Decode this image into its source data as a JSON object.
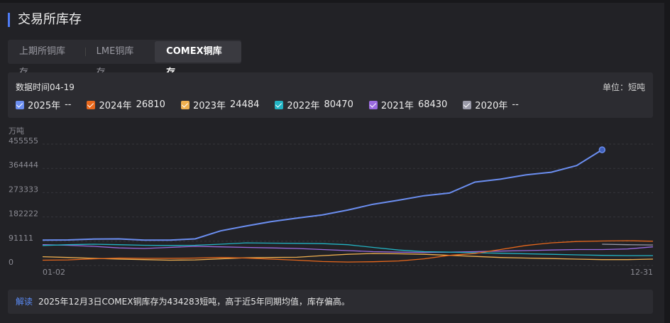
{
  "header": {
    "title": "交易所库存"
  },
  "tabs": [
    "上期所铜库存",
    "LME铜库存",
    "COMEX铜库存"
  ],
  "chart_data": {
    "type": "line",
    "data_time": "数据时间04-19",
    "unit": "单位：短吨",
    "y_unit": "万吨",
    "categories": [
      "01-02",
      null,
      null,
      null,
      null,
      null,
      null,
      null,
      null,
      null,
      null,
      null,
      null,
      null,
      null,
      null,
      null,
      null,
      null,
      null,
      null,
      null,
      null,
      null,
      "12-31"
    ],
    "ylim": [
      0,
      455555
    ],
    "yticks": [
      0,
      91111,
      182222,
      273333,
      364444,
      455555
    ],
    "grid": true,
    "legend_values": [
      "--",
      26810,
      24484,
      80470,
      68430,
      "--"
    ],
    "series": [
      {
        "name": "2025年",
        "color": "#6b8ef0",
        "values": [
          95000,
          96000,
          99000,
          100000,
          95000,
          95000,
          100000,
          130000,
          148000,
          165000,
          178000,
          190000,
          208000,
          230000,
          245000,
          262000,
          272000,
          313000,
          324000,
          340000,
          350000,
          375000,
          434283,
          null,
          null
        ]
      },
      {
        "name": "2024年",
        "color": "#e8681c",
        "values": [
          20000,
          21000,
          25000,
          28000,
          27000,
          27000,
          28000,
          30000,
          28000,
          24000,
          20000,
          15000,
          13000,
          14000,
          17000,
          25000,
          38000,
          45000,
          60000,
          75000,
          85000,
          90000,
          92000,
          93000,
          91000
        ]
      },
      {
        "name": "2023年",
        "color": "#f0b050",
        "values": [
          33000,
          30000,
          27000,
          24000,
          22000,
          20000,
          21000,
          25000,
          29000,
          30000,
          31000,
          37000,
          42000,
          45000,
          44000,
          42000,
          38000,
          34000,
          30000,
          28000,
          26000,
          24000,
          22000,
          22000,
          24000
        ]
      },
      {
        "name": "2022年",
        "color": "#22b3c3",
        "values": [
          75000,
          78000,
          80000,
          78000,
          76000,
          75000,
          76000,
          80000,
          85000,
          84000,
          83000,
          82000,
          78000,
          68000,
          58000,
          52000,
          50000,
          48000,
          46000,
          44000,
          42000,
          40000,
          38000,
          37000,
          37000
        ]
      },
      {
        "name": "2021年",
        "color": "#9b6be0",
        "values": [
          78000,
          76000,
          72000,
          66000,
          64000,
          68000,
          72000,
          70000,
          68000,
          66000,
          64000,
          60000,
          56000,
          52000,
          50000,
          49000,
          50000,
          52000,
          54000,
          56000,
          58000,
          60000,
          60000,
          62000,
          70000
        ]
      },
      {
        "name": "2020年",
        "color": "#9a9aa8",
        "values": [
          null,
          null,
          null,
          null,
          null,
          null,
          null,
          null,
          null,
          null,
          null,
          null,
          null,
          null,
          null,
          null,
          null,
          null,
          null,
          null,
          null,
          null,
          80000,
          78000,
          77000
        ]
      }
    ],
    "annotation_label": "解读",
    "annotation": "2025年12月3日COMEX铜库存为434283短吨，高于近5年同期均值，库存偏高。"
  }
}
